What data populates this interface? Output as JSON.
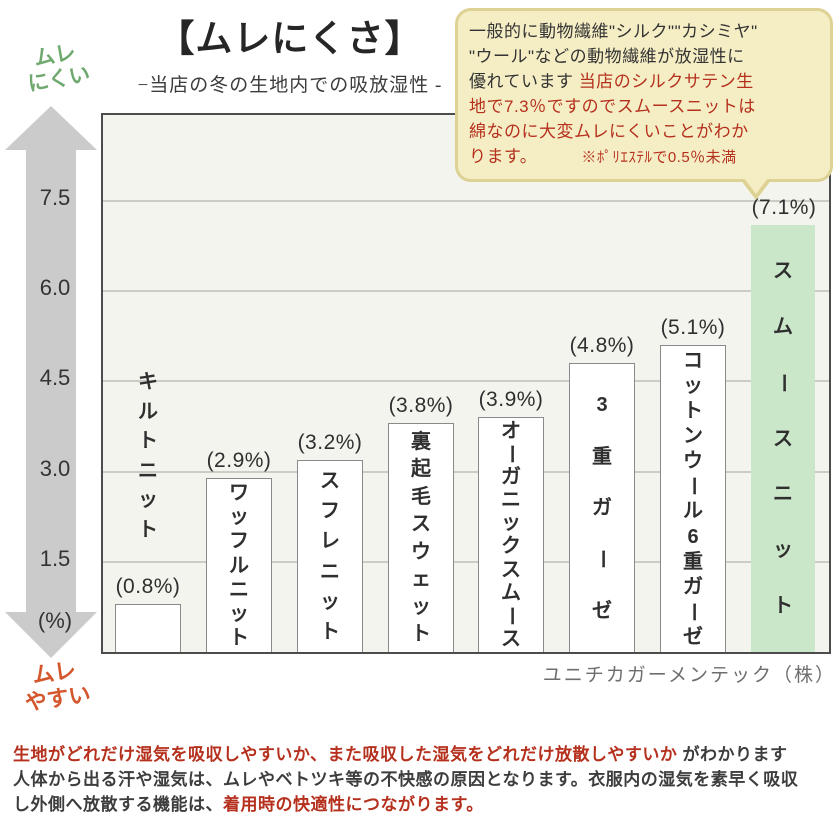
{
  "title": "【ムレにくさ】",
  "subtitle": "−当店の冬の生地内での吸放湿性 -",
  "axis_caption_top": "ムレ\nにくい",
  "axis_caption_bottom": "ムレ\nやすい",
  "source": "ユニチカガーメンテック（株）",
  "palette": {
    "dark": "#333333",
    "red": "#b5301d",
    "green_caption": "#6fa96f",
    "orange_caption": "#d4562c",
    "arrow_gray": "#cbcbcb",
    "plot_bg": "#f4f4ee",
    "bar_fill": "#ffffff",
    "bar_border": "#8a8a8a",
    "highlight_fill": "#cbe7c9",
    "bubble_bg": "#f5eec5",
    "bubble_border": "#ddd193"
  },
  "bubble": {
    "lines": [
      {
        "segments": [
          {
            "text": "一般的に動物繊維\"シルク\"\"カシミヤ\"",
            "color": "dark"
          }
        ]
      },
      {
        "segments": [
          {
            "text": "\"ウール\"などの動物繊維が放湿性に",
            "color": "dark"
          }
        ]
      },
      {
        "segments": [
          {
            "text": "優れています ",
            "color": "dark"
          },
          {
            "text": "当店のシルクサテン生",
            "color": "red"
          }
        ]
      },
      {
        "segments": [
          {
            "text": "地で7.3％ですのでスムースニットは",
            "color": "red"
          }
        ]
      },
      {
        "segments": [
          {
            "text": "綿なのに大変ムレにくいことがわか",
            "color": "red"
          }
        ]
      },
      {
        "segments": [
          {
            "text": "ります。",
            "color": "red"
          },
          {
            "text": "　　　",
            "color": "red"
          },
          {
            "text": "※ﾎﾟﾘｴｽﾃﾙで0.5％未満",
            "color": "red",
            "small": true
          }
        ]
      }
    ]
  },
  "footer": {
    "lines": [
      {
        "segments": [
          {
            "text": "生地がどれだけ湿気を吸収しやすいか、また吸収した湿気をどれだけ放散しやすいか",
            "color": "red"
          },
          {
            "text": " がわかります",
            "color": "dark"
          }
        ]
      },
      {
        "segments": [
          {
            "text": "人体から出る汗や湿気は、ムレやベトツキ等の不快感の原因となります。衣服内の湿気を素早く吸収",
            "color": "dark"
          }
        ]
      },
      {
        "segments": [
          {
            "text": "し外側へ放散する機能は、",
            "color": "dark"
          },
          {
            "text": "着用時の快適性につながります。",
            "color": "red"
          }
        ]
      }
    ]
  },
  "chart_data": {
    "type": "bar",
    "title": "ムレにくさ −当店の冬の生地内での吸放湿性−",
    "categories": [
      "キルトニット",
      "ワッフルニット",
      "スフレニット",
      "裏起毛スウェット",
      "オーガニックスムース",
      "3重ガーゼ",
      "コットンウール6重ガーゼ",
      "スムースニット"
    ],
    "values": [
      0.8,
      2.9,
      3.2,
      3.8,
      3.9,
      4.8,
      5.1,
      7.1
    ],
    "value_labels": [
      "(0.8%)",
      "(2.9%)",
      "(3.2%)",
      "(3.8%)",
      "(3.9%)",
      "(4.8%)",
      "(5.1%)",
      "(7.1%)"
    ],
    "label_outside": [
      true,
      false,
      false,
      false,
      false,
      false,
      false,
      false
    ],
    "highlight_index": 7,
    "xlabel": "",
    "ylabel": "(%)",
    "yticks": [
      1.5,
      3.0,
      4.5,
      6.0,
      7.5
    ],
    "ylim": [
      0,
      8.93
    ],
    "grid": true,
    "legend": "none"
  }
}
